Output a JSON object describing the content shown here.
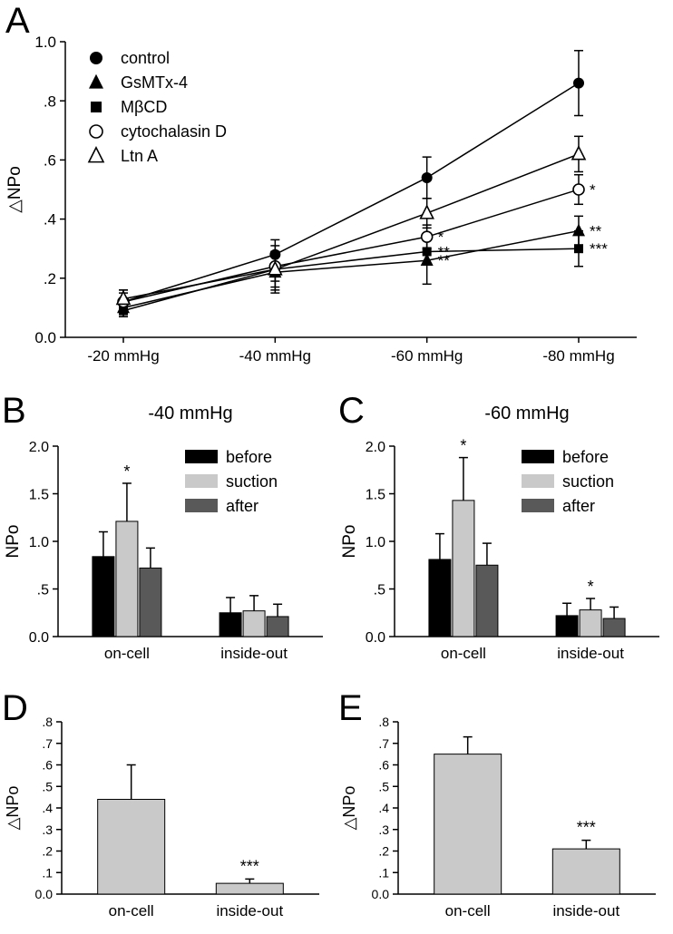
{
  "figure": {
    "background": "#ffffff",
    "colors": {
      "black": "#000000",
      "light_gray": "#c9c9c9",
      "dark_gray": "#595959",
      "white": "#ffffff"
    }
  },
  "chart_data": [
    {
      "id": "A",
      "panel_label": "A",
      "type": "line",
      "ylabel": "△NPo",
      "categories": [
        "-20 mmHg",
        "-40 mmHg",
        "-60 mmHg",
        "-80 mmHg"
      ],
      "ylim": [
        0,
        1.0
      ],
      "yticks": [
        0,
        0.2,
        0.4,
        0.6,
        0.8,
        1.0
      ],
      "ytick_labels": [
        "0.0",
        ".2",
        ".4",
        ".6",
        ".8",
        "1.0"
      ],
      "legend_position": "top-left",
      "series": [
        {
          "name": "control",
          "marker": "filled-circle",
          "values": [
            0.12,
            0.28,
            0.54,
            0.86
          ],
          "errors": [
            0.04,
            0.05,
            0.07,
            0.11
          ],
          "annotations": [
            "",
            "",
            "",
            ""
          ]
        },
        {
          "name": "GsMTx-4",
          "marker": "filled-triangle",
          "values": [
            0.1,
            0.22,
            0.26,
            0.36
          ],
          "errors": [
            0.03,
            0.06,
            0.08,
            0.05
          ],
          "annotations": [
            "",
            "",
            "**",
            "**"
          ]
        },
        {
          "name": "MβCD",
          "marker": "filled-square",
          "values": [
            0.09,
            0.23,
            0.29,
            0.3
          ],
          "errors": [
            0.02,
            0.06,
            0.04,
            0.06
          ],
          "annotations": [
            "",
            "",
            "**",
            "***"
          ]
        },
        {
          "name": "cytochalasin D",
          "marker": "open-circle",
          "values": [
            0.12,
            0.24,
            0.34,
            0.5
          ],
          "errors": [
            0.03,
            0.05,
            0.04,
            0.05
          ],
          "annotations": [
            "",
            "",
            "*",
            "*"
          ]
        },
        {
          "name": "Ltn A",
          "marker": "open-triangle",
          "values": [
            0.13,
            0.23,
            0.42,
            0.62
          ],
          "errors": [
            0.03,
            0.08,
            0.05,
            0.06
          ],
          "annotations": [
            "",
            "",
            "",
            ""
          ]
        }
      ]
    },
    {
      "id": "B",
      "panel_label": "B",
      "type": "grouped-bar",
      "title": "-40 mmHg",
      "ylabel": "NPo",
      "categories": [
        "on-cell",
        "inside-out"
      ],
      "ylim": [
        0,
        2.0
      ],
      "yticks": [
        0,
        0.5,
        1.0,
        1.5,
        2.0
      ],
      "ytick_labels": [
        "0.0",
        ".5",
        "1.0",
        "1.5",
        "2.0"
      ],
      "legend_position": "top-right",
      "series": [
        {
          "name": "before",
          "color": "#000000",
          "values": [
            0.84,
            0.25
          ],
          "errors": [
            0.26,
            0.16
          ],
          "annotations": [
            "",
            ""
          ]
        },
        {
          "name": "suction",
          "color": "#c9c9c9",
          "values": [
            1.21,
            0.27
          ],
          "errors": [
            0.4,
            0.16
          ],
          "annotations": [
            "*",
            ""
          ]
        },
        {
          "name": "after",
          "color": "#595959",
          "values": [
            0.72,
            0.21
          ],
          "errors": [
            0.21,
            0.13
          ],
          "annotations": [
            "",
            ""
          ]
        }
      ]
    },
    {
      "id": "C",
      "panel_label": "C",
      "type": "grouped-bar",
      "title": "-60 mmHg",
      "ylabel": "NPo",
      "categories": [
        "on-cell",
        "inside-out"
      ],
      "ylim": [
        0,
        2.0
      ],
      "yticks": [
        0,
        0.5,
        1.0,
        1.5,
        2.0
      ],
      "ytick_labels": [
        "0.0",
        ".5",
        "1.0",
        "1.5",
        "2.0"
      ],
      "legend_position": "top-right",
      "series": [
        {
          "name": "before",
          "color": "#000000",
          "values": [
            0.81,
            0.22
          ],
          "errors": [
            0.27,
            0.13
          ],
          "annotations": [
            "",
            ""
          ]
        },
        {
          "name": "suction",
          "color": "#c9c9c9",
          "values": [
            1.43,
            0.28
          ],
          "errors": [
            0.45,
            0.12
          ],
          "annotations": [
            "*",
            "*"
          ]
        },
        {
          "name": "after",
          "color": "#595959",
          "values": [
            0.75,
            0.19
          ],
          "errors": [
            0.23,
            0.12
          ],
          "annotations": [
            "",
            ""
          ]
        }
      ]
    },
    {
      "id": "D",
      "panel_label": "D",
      "type": "bar",
      "ylabel": "△NPo",
      "categories": [
        "on-cell",
        "inside-out"
      ],
      "ylim": [
        0,
        0.8
      ],
      "yticks": [
        0,
        0.1,
        0.2,
        0.3,
        0.4,
        0.5,
        0.6,
        0.7,
        0.8
      ],
      "ytick_labels": [
        "0.0",
        ".1",
        ".2",
        ".3",
        ".4",
        ".5",
        ".6",
        ".7",
        ".8"
      ],
      "bar_color": "#c9c9c9",
      "values": [
        0.44,
        0.05
      ],
      "errors": [
        0.16,
        0.02
      ],
      "annotations": [
        "",
        "***"
      ]
    },
    {
      "id": "E",
      "panel_label": "E",
      "type": "bar",
      "ylabel": "△NPo",
      "categories": [
        "on-cell",
        "inside-out"
      ],
      "ylim": [
        0,
        0.8
      ],
      "yticks": [
        0,
        0.1,
        0.2,
        0.3,
        0.4,
        0.5,
        0.6,
        0.7,
        0.8
      ],
      "ytick_labels": [
        "0.0",
        ".1",
        ".2",
        ".3",
        ".4",
        ".5",
        ".6",
        ".7",
        ".8"
      ],
      "bar_color": "#c9c9c9",
      "values": [
        0.65,
        0.21
      ],
      "errors": [
        0.08,
        0.04
      ],
      "annotations": [
        "",
        "***"
      ]
    }
  ]
}
